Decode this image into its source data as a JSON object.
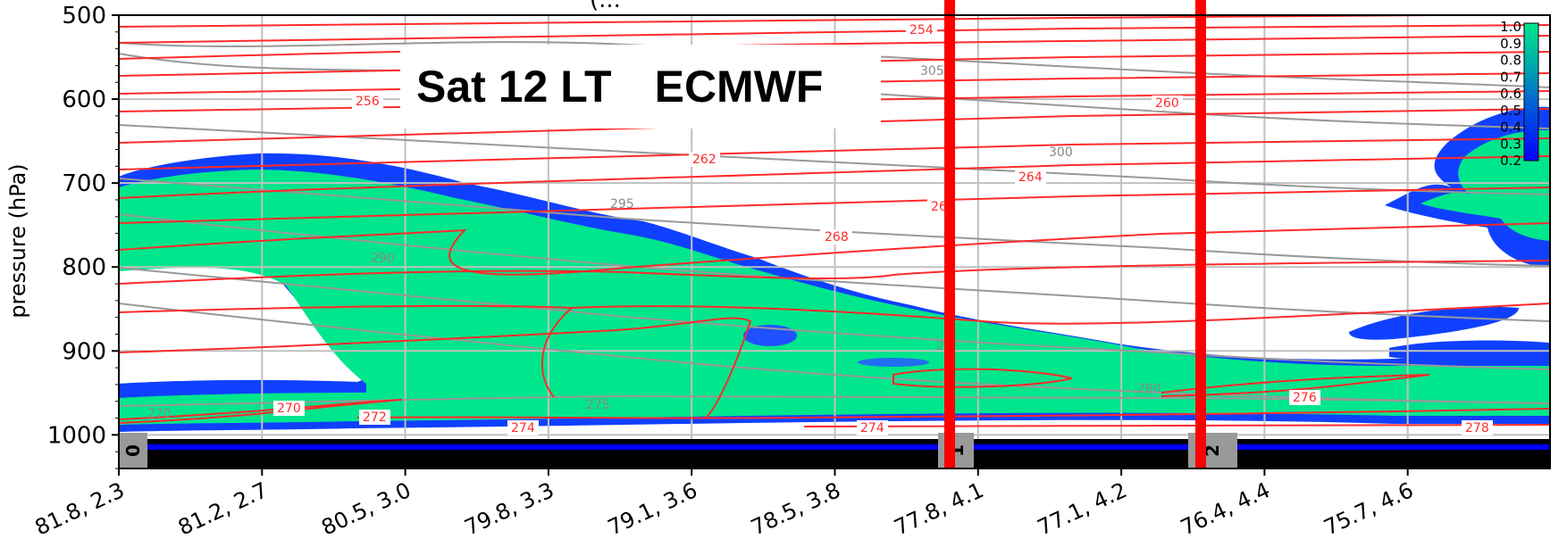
{
  "header": {
    "cut_title": "(..."
  },
  "overlay": {
    "time_label": "Sat 12 LT",
    "model_label": "ECMWF"
  },
  "chart_data": {
    "type": "heatmap",
    "ylabel": "pressure (hPa)",
    "xlabel": "",
    "y_axis": {
      "ylim": [
        1040,
        500
      ],
      "ticks": [
        500,
        600,
        700,
        800,
        900,
        1000
      ],
      "inverted": true
    },
    "x_ticks": [
      "81.8, 2.3",
      "81.2, 2.7",
      "80.5, 3.0",
      "79.8, 3.3",
      "79.1, 3.6",
      "78.5, 3.8",
      "77.8, 4.1",
      "77.1, 4.2",
      "76.4, 4.4",
      "75.7, 4.6"
    ],
    "grid": true,
    "fill_variable_colorbar": {
      "ticks": [
        "1.0",
        "0.9",
        "0.8",
        "0.7",
        "0.6",
        "0.5",
        "0.4",
        "0.3",
        "0.2"
      ],
      "color_low": "#0000ff",
      "color_high": "#00e68c"
    },
    "red_contour_labels": [
      "254",
      "256",
      "260",
      "262",
      "264",
      "26",
      "268",
      "268",
      "270",
      "272",
      "274",
      "274",
      "276",
      "278"
    ],
    "gray_contour_labels": [
      "305",
      "300",
      "295",
      "290",
      "280",
      "275",
      "270",
      "2"
    ],
    "vertical_markers": {
      "color": "#ff0000",
      "x_positions": [
        "77.85, 4.05",
        "76.5, 4.35"
      ]
    },
    "bottom_strip_labels": [
      "0",
      "1",
      "2"
    ],
    "colors": {
      "red_contour": "#ff2a2a",
      "gray_contour": "#999999",
      "grid": "#c0c0c0"
    }
  }
}
